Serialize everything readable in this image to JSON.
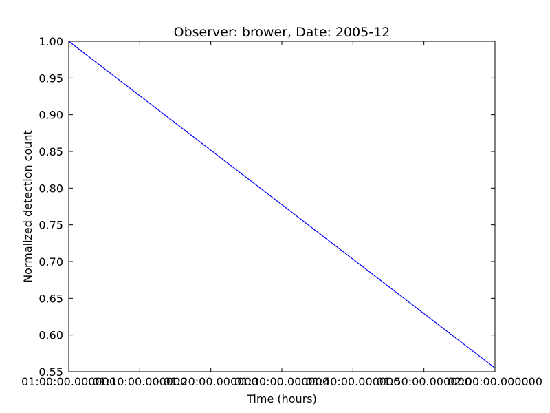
{
  "chart_data": {
    "type": "line",
    "title": "Observer: brower, Date: 2005-12",
    "xlabel": "Time (hours)",
    "ylabel": "Normalized detection count",
    "x_ticks": [
      "01:00:00.000000",
      "01:10:00.000000",
      "01:20:00.000000",
      "01:30:00.000000",
      "01:40:00.000000",
      "01:50:00.000000",
      "02:00:00.000000"
    ],
    "y_ticks": [
      "0.55",
      "0.60",
      "0.65",
      "0.70",
      "0.75",
      "0.80",
      "0.85",
      "0.90",
      "0.95",
      "1.00"
    ],
    "xlim": [
      "01:00:00",
      "02:00:00"
    ],
    "ylim": [
      0.55,
      1.0
    ],
    "grid": false,
    "series": [
      {
        "color": "#0000ff",
        "x": [
          "01:00:00",
          "02:00:00"
        ],
        "y": [
          1.0,
          0.555
        ]
      }
    ]
  }
}
